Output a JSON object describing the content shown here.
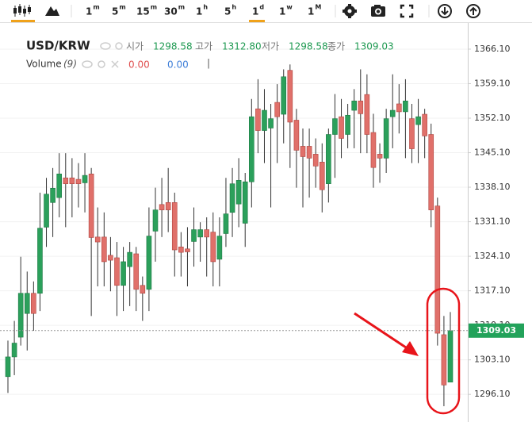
{
  "toolbar": {
    "intervals": [
      {
        "num": "1",
        "unit": "m"
      },
      {
        "num": "5",
        "unit": "m"
      },
      {
        "num": "15",
        "unit": "m"
      },
      {
        "num": "30",
        "unit": "m"
      },
      {
        "num": "1",
        "unit": "h"
      },
      {
        "num": "5",
        "unit": "h"
      },
      {
        "num": "1",
        "unit": "d"
      },
      {
        "num": "1",
        "unit": "w"
      },
      {
        "num": "1",
        "unit": "M"
      }
    ]
  },
  "legend": {
    "symbol": "USD/KRW",
    "fields": [
      {
        "label": "시가",
        "value": "1298.58"
      },
      {
        "label": "고가",
        "value": "1312.80"
      },
      {
        "label": "저가",
        "value": "1298.58"
      },
      {
        "label": "종가",
        "value": "1309.03"
      }
    ],
    "volume": {
      "label": "Volume",
      "param": "(9)",
      "values": [
        "0.00",
        "0.00"
      ],
      "separator": "|"
    }
  },
  "chart_data": {
    "type": "candlestick",
    "up_color": "#2ba05b",
    "down_color": "#e0706a",
    "grid": true,
    "open": [
      1299.7,
      1303.7,
      1307.7,
      1312.5,
      1316.6,
      1316.6,
      1330,
      1335,
      1336,
      1340,
      1340,
      1339.7,
      1339,
      1340.8,
      1328,
      1328,
      1324.3,
      1323.8,
      1318.2,
      1322,
      1324.6,
      1318.2,
      1317.4,
      1329.2,
      1334.6,
      1335,
      1335,
      1326,
      1325.6,
      1327.1,
      1328,
      1329.5,
      1329,
      1323.5,
      1328.7,
      1333,
      1334.7,
      1330.8,
      1339.2,
      1354,
      1349.6,
      1350.1,
      1355.3,
      1352.9,
      1361.8,
      1351.7,
      1346.4,
      1346.4,
      1344.8,
      1343.2,
      1338.8,
      1348.8,
      1352.4,
      1348.8,
      1353.7,
      1355.6,
      1356.9,
      1349.2,
      1344.8,
      1344,
      1352.4,
      1355,
      1353.4,
      1352,
      1350.8,
      1352.9,
      1348.8,
      1334.3,
      1308.2,
      1298.58
    ],
    "high": [
      1307,
      1311,
      1324,
      1321,
      1319,
      1337,
      1340,
      1342,
      1345,
      1345,
      1344,
      1343,
      1345,
      1342,
      1334,
      1333,
      1328,
      1327,
      1326,
      1327,
      1326,
      1320,
      1334,
      1338,
      1340,
      1342,
      1337,
      1329,
      1330,
      1334,
      1331,
      1332,
      1333,
      1332,
      1340,
      1342,
      1344,
      1341,
      1356,
      1360,
      1358,
      1355,
      1359,
      1362,
      1363,
      1354,
      1350,
      1350,
      1348,
      1347,
      1350,
      1357,
      1356,
      1355,
      1358,
      1362,
      1361,
      1353,
      1347,
      1354,
      1361,
      1359,
      1360,
      1355,
      1356,
      1354,
      1351,
      1336,
      1312,
      1312.8
    ],
    "low": [
      1296.4,
      1300,
      1306,
      1305,
      1309,
      1313,
      1326,
      1328,
      1332,
      1330,
      1332,
      1334,
      1333,
      1312,
      1318,
      1318,
      1317,
      1312,
      1313,
      1314,
      1313,
      1311,
      1313,
      1323,
      1328,
      1329,
      1320,
      1320,
      1318,
      1322,
      1323,
      1320,
      1318,
      1318,
      1326,
      1328,
      1330,
      1326,
      1334,
      1345,
      1343,
      1334,
      1343,
      1347,
      1342,
      1338,
      1334,
      1336,
      1338,
      1333,
      1335,
      1340,
      1344,
      1346,
      1346,
      1345,
      1345,
      1338,
      1339,
      1341,
      1346,
      1349,
      1344,
      1343,
      1343,
      1344,
      1330,
      1306,
      1293.7,
      1298.58
    ],
    "close": [
      1303.7,
      1306.5,
      1316.6,
      1316.6,
      1312.5,
      1329.8,
      1336.7,
      1337.9,
      1340.8,
      1338.8,
      1338.8,
      1338.8,
      1340.5,
      1327.9,
      1327,
      1323,
      1323.3,
      1318.2,
      1323,
      1324.9,
      1317.4,
      1316.6,
      1328.2,
      1333.5,
      1333.5,
      1333.5,
      1325.4,
      1324.9,
      1325,
      1329.5,
      1329.5,
      1328,
      1323,
      1328.2,
      1332.7,
      1338.8,
      1339.5,
      1339.2,
      1352.4,
      1349.6,
      1353.7,
      1352,
      1352.4,
      1360.5,
      1351.3,
      1345.6,
      1344.3,
      1344,
      1342.4,
      1337.6,
      1348.8,
      1352,
      1348,
      1352.7,
      1355.6,
      1353,
      1348.8,
      1342.1,
      1344,
      1352,
      1353.7,
      1353.4,
      1355.6,
      1345.9,
      1352.4,
      1348.5,
      1333.5,
      1308.5,
      1298,
      1309.03
    ],
    "ylim": [
      1290.5,
      1371.4
    ],
    "yticks": [
      {
        "value": 1296.1,
        "label": "1296.10"
      },
      {
        "value": 1303.1,
        "label": "1303.10"
      },
      {
        "value": 1310.1,
        "label": "1310.10"
      },
      {
        "value": 1317.1,
        "label": "1317.10"
      },
      {
        "value": 1324.1,
        "label": "1324.10"
      },
      {
        "value": 1331.1,
        "label": "1331.10"
      },
      {
        "value": 1338.1,
        "label": "1338.10"
      },
      {
        "value": 1345.1,
        "label": "1345.10"
      },
      {
        "value": 1352.1,
        "label": "1352.10"
      },
      {
        "value": 1359.1,
        "label": "1359.10"
      },
      {
        "value": 1366.1,
        "label": "1366.10"
      }
    ],
    "last_price": {
      "value": 1309.03,
      "label": "1309.03"
    }
  }
}
